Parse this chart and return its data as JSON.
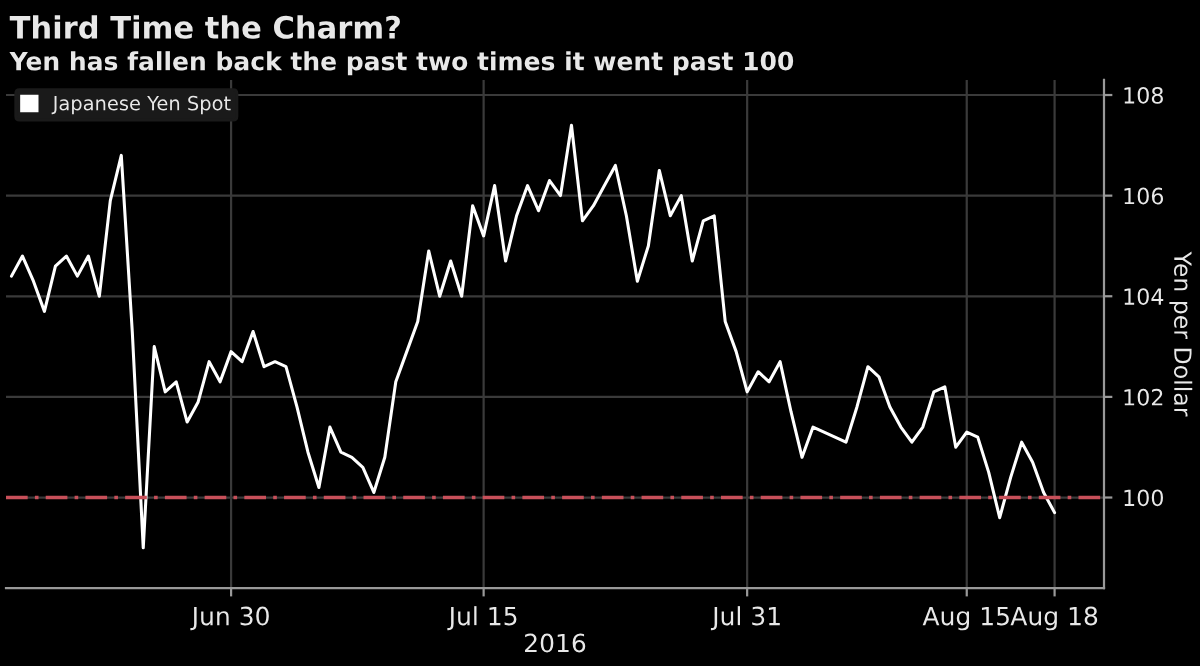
{
  "chart_data": {
    "type": "line",
    "title": "Third Time the Charm?",
    "subtitle": "Yen has fallen back the past two times it went past 100",
    "xlabel": "2016",
    "ylabel": "Yen per Dollar",
    "categories": [
      null,
      null,
      null,
      null,
      null,
      null,
      null,
      null,
      null,
      null,
      null,
      null,
      null,
      null,
      null,
      null,
      null,
      null,
      null,
      null,
      "Jun 30",
      null,
      null,
      null,
      null,
      null,
      null,
      null,
      null,
      null,
      null,
      null,
      null,
      null,
      null,
      null,
      null,
      null,
      null,
      null,
      null,
      null,
      null,
      "Jul 15",
      null,
      null,
      null,
      null,
      null,
      null,
      null,
      null,
      null,
      null,
      null,
      null,
      null,
      null,
      null,
      null,
      null,
      null,
      null,
      null,
      null,
      null,
      null,
      "Jul 31",
      null,
      null,
      null,
      null,
      null,
      null,
      null,
      null,
      null,
      null,
      null,
      null,
      null,
      null,
      null,
      null,
      null,
      null,
      null,
      "Aug 15",
      null,
      null,
      null,
      null,
      null,
      null,
      null,
      "Aug 18"
    ],
    "series": [
      {
        "name": "Japanese Yen Spot",
        "color": "#ffffff",
        "values": [
          104.4,
          104.8,
          104.3,
          103.7,
          104.6,
          104.8,
          104.4,
          104.8,
          104.0,
          105.9,
          106.8,
          103.3,
          99.0,
          103.0,
          102.1,
          102.3,
          101.5,
          101.9,
          102.7,
          102.3,
          102.9,
          102.7,
          103.3,
          102.6,
          102.7,
          102.6,
          101.8,
          100.9,
          100.2,
          101.4,
          100.9,
          100.8,
          100.6,
          100.1,
          100.8,
          102.3,
          102.9,
          103.5,
          104.9,
          104.0,
          104.7,
          104.0,
          105.8,
          105.2,
          106.2,
          104.7,
          105.6,
          106.2,
          105.7,
          106.3,
          106.0,
          107.4,
          105.5,
          105.8,
          106.2,
          106.6,
          105.6,
          104.3,
          105.0,
          106.5,
          105.6,
          106.0,
          104.7,
          105.5,
          105.6,
          103.5,
          102.9,
          102.1,
          102.5,
          102.3,
          102.7,
          101.7,
          100.8,
          101.4,
          101.3,
          101.2,
          101.1,
          101.8,
          102.6,
          102.4,
          101.8,
          101.4,
          101.1,
          101.4,
          102.1,
          102.2,
          101.0,
          101.3,
          101.2,
          100.5,
          99.6,
          100.4,
          101.1,
          100.7,
          100.1,
          99.7
        ]
      }
    ],
    "ylim": [
      98.2,
      108.3
    ],
    "yticks": [
      100,
      102,
      104,
      106,
      108
    ],
    "ref_lines": [
      {
        "axis": "y",
        "value": 100,
        "color": "#c8505a",
        "line_style": "dashed"
      }
    ],
    "grid": true,
    "legend": "top left",
    "marker": "none",
    "line_style": "solid"
  }
}
